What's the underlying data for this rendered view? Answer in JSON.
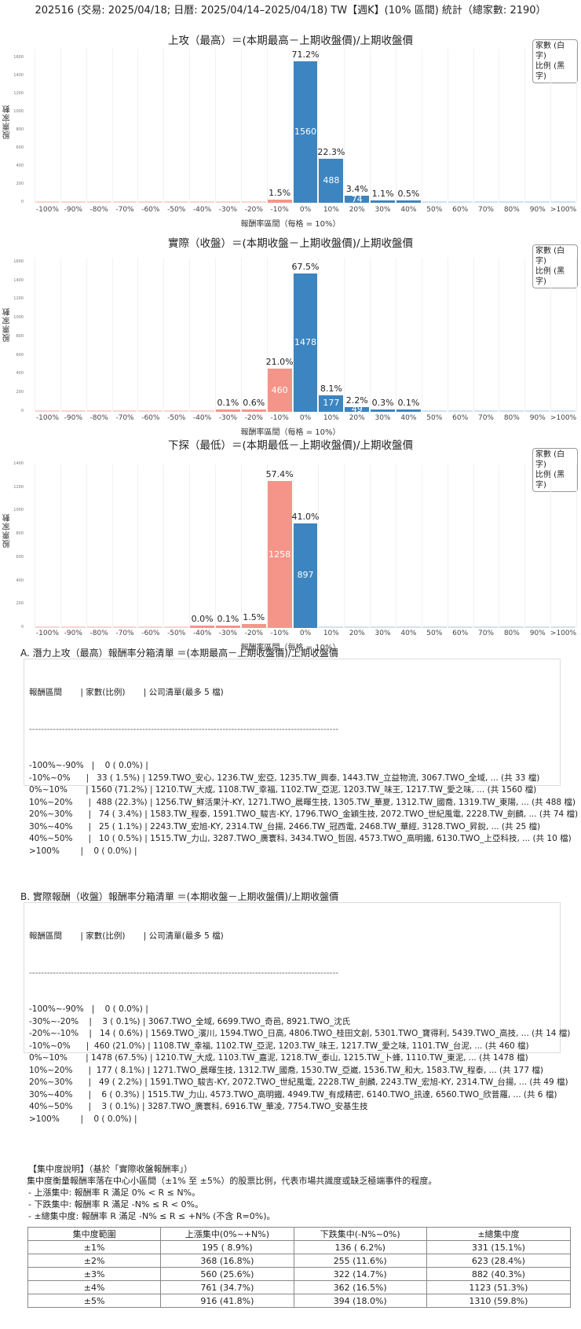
{
  "page_title": "202516 (交易: 2025/04/18; 日曆: 2025/04/14–2025/04/18) TW【週K】(10% 區間) 統計（總家數: 2190）",
  "legend": {
    "line1": "家數 (白字)",
    "line2": "比例 (黑字)"
  },
  "ylabel": "股票家數",
  "xlabel": "報酬率區間（每格 = 10%）",
  "colors": {
    "positive": "#3d85c0",
    "negative": "#f5958a"
  },
  "chart_data": [
    {
      "type": "bar",
      "title": "上攻（最高）＝(本期最高－上期收盤價)/上期收盤價",
      "xlabel": "報酬率區間（每格 = 10%）",
      "ylabel": "股票家數",
      "categories": [
        "-100%",
        "-90%",
        "-80%",
        "-70%",
        "-60%",
        "-50%",
        "-40%",
        "-30%",
        "-20%",
        "-10%",
        "0%",
        "10%",
        "20%",
        "30%",
        "40%",
        "50%",
        "60%",
        "70%",
        "80%",
        "90%",
        ">100%"
      ],
      "values": [
        0,
        0,
        0,
        0,
        0,
        0,
        0,
        0,
        0,
        33,
        1560,
        488,
        74,
        25,
        10,
        0,
        0,
        0,
        0,
        0,
        0
      ],
      "pct_labels": [
        "",
        "",
        "",
        "",
        "",
        "",
        "",
        "",
        "",
        "1.5%",
        "71.2%",
        "22.3%",
        "3.4%",
        "1.1%",
        "0.5%",
        "",
        "",
        "",
        "",
        "",
        ""
      ],
      "yticks": [
        0,
        200,
        400,
        600,
        800,
        1000,
        1200,
        1400,
        1600
      ],
      "ylim": [
        0,
        1700
      ],
      "legend": "家數 (白字) / 比例 (黑字)"
    },
    {
      "type": "bar",
      "title": "實際（收盤）＝(本期收盤－上期收盤價)/上期收盤價",
      "xlabel": "報酬率區間（每格 = 10%）",
      "ylabel": "股票家數",
      "categories": [
        "-100%",
        "-90%",
        "-80%",
        "-70%",
        "-60%",
        "-50%",
        "-40%",
        "-30%",
        "-20%",
        "-10%",
        "0%",
        "10%",
        "20%",
        "30%",
        "40%",
        "50%",
        "60%",
        "70%",
        "80%",
        "90%",
        ">100%"
      ],
      "values": [
        0,
        0,
        0,
        0,
        0,
        0,
        0,
        3,
        14,
        460,
        1478,
        177,
        49,
        6,
        3,
        0,
        0,
        0,
        0,
        0,
        0
      ],
      "pct_labels": [
        "",
        "",
        "",
        "",
        "",
        "",
        "",
        "0.1%",
        "0.6%",
        "21.0%",
        "67.5%",
        "8.1%",
        "2.2%",
        "0.3%",
        "0.1%",
        "",
        "",
        "",
        "",
        "",
        ""
      ],
      "yticks": [
        0,
        200,
        400,
        600,
        800,
        1000,
        1200,
        1400,
        1600
      ],
      "ylim": [
        0,
        1650
      ],
      "legend": "家數 (白字) / 比例 (黑字)"
    },
    {
      "type": "bar",
      "title": "下探（最低）＝(本期最低－上期收盤價)/上期收盤價",
      "xlabel": "報酬率區間（每格 = 10%）",
      "ylabel": "股票家數",
      "categories": [
        "-100%",
        "-90%",
        "-80%",
        "-70%",
        "-60%",
        "-50%",
        "-40%",
        "-30%",
        "-20%",
        "-10%",
        "0%",
        "10%",
        "20%",
        "30%",
        "40%",
        "50%",
        "60%",
        "70%",
        "80%",
        "90%",
        ">100%"
      ],
      "values": [
        0,
        0,
        0,
        0,
        0,
        0,
        1,
        2,
        32,
        1258,
        897,
        0,
        0,
        0,
        0,
        0,
        0,
        0,
        0,
        0,
        0
      ],
      "pct_labels": [
        "",
        "",
        "",
        "",
        "",
        "",
        "0.0%",
        "0.1%",
        "1.5%",
        "57.4%",
        "41.0%",
        "",
        "",
        "",
        "",
        "",
        "",
        "",
        "",
        "",
        ""
      ],
      "yticks": [
        0,
        200,
        400,
        600,
        800,
        1000,
        1200,
        1400
      ],
      "ylim": [
        0,
        1400
      ],
      "legend": "家數 (白字) / 比例 (黑字)"
    }
  ],
  "section_a": {
    "title": "A. 潛力上攻（最高）報酬率分箱清單 ＝(本期最高－上期收盤價)/上期收盤價",
    "header": "報酬區間       | 家數(比例)       | 公司清單(最多 5 檔)",
    "divider": "--------------------------------------------------------------------------------------------------------",
    "rows": [
      "-100%~-90%   |    0 ( 0.0%) |",
      "-10%~0%      |   33 ( 1.5%) | 1259.TWO_安心, 1236.TW_宏亞, 1235.TW_興泰, 1443.TW_立益物流, 3067.TWO_全域, ... (共 33 檔)",
      "0%~10%       | 1560 (71.2%) | 1210.TW_大成, 1108.TW_幸福, 1102.TW_亞泥, 1203.TW_味王, 1217.TW_愛之味, ... (共 1560 檔)",
      "10%~20%      |  488 (22.3%) | 1256.TW_鮮活果汁-KY, 1271.TWO_晨暉生技, 1305.TW_華夏, 1312.TW_國喬, 1319.TW_東陽, ... (共 488 檔)",
      "20%~30%      |   74 ( 3.4%) | 1583.TW_程泰, 1591.TWO_駿吉-KY, 1796.TWO_金穎生技, 2072.TWO_世紀風電, 2228.TW_劍麟, ... (共 74 檔)",
      "30%~40%      |   25 ( 1.1%) | 2243.TW_宏旭-KY, 2314.TW_台揚, 2466.TW_冠西電, 2468.TW_華經, 3128.TWO_昇銳, ... (共 25 檔)",
      "40%~50%      |   10 ( 0.5%) | 1515.TW_力山, 3287.TWO_廣寰科, 3434.TWO_哲固, 4573.TWO_高明鐵, 6130.TWO_上亞科技, ... (共 10 檔)",
      ">100%        |    0 ( 0.0%) |"
    ]
  },
  "section_b": {
    "title": "B. 實際報酬（收盤）報酬率分箱清單 ＝(本期收盤－上期收盤價)/上期收盤價",
    "header": "報酬區間       | 家數(比例)       | 公司清單(最多 5 檔)",
    "divider": "--------------------------------------------------------------------------------------------------------",
    "rows": [
      "-100%~-90%   |    0 ( 0.0%) |",
      "-30%~-20%    |    3 ( 0.1%) | 3067.TWO_全域, 6699.TWO_奇邑, 8921.TWO_沈氏",
      "-20%~-10%    |   14 ( 0.6%) | 1569.TWO_濱川, 1594.TWO_日高, 4806.TWO_桂田文創, 5301.TWO_寶得利, 5439.TWO_高技, ... (共 14 檔)",
      "-10%~0%      |  460 (21.0%) | 1108.TW_幸福, 1102.TW_亞泥, 1203.TW_味王, 1217.TW_愛之味, 1101.TW_台泥, ... (共 460 檔)",
      "0%~10%       | 1478 (67.5%) | 1210.TW_大成, 1103.TW_嘉泥, 1218.TW_泰山, 1215.TW_卜蜂, 1110.TW_東泥, ... (共 1478 檔)",
      "10%~20%      |  177 ( 8.1%) | 1271.TWO_晨暉生技, 1312.TW_國喬, 1530.TW_亞崴, 1536.TW_和大, 1583.TW_程泰, ... (共 177 檔)",
      "20%~30%      |   49 ( 2.2%) | 1591.TWO_駿吉-KY, 2072.TWO_世紀風電, 2228.TW_劍麟, 2243.TW_宏旭-KY, 2314.TW_台揚, ... (共 49 檔)",
      "30%~40%      |    6 ( 0.3%) | 1515.TW_力山, 4573.TWO_高明鐵, 4949.TW_有成精密, 6140.TWO_訊達, 6560.TWO_欣普羅, ... (共 6 檔)",
      "40%~50%      |    3 ( 0.1%) | 3287.TWO_廣寰科, 6916.TW_華凌, 7754.TWO_安基生技",
      ">100%        |    0 ( 0.0%) |"
    ]
  },
  "concentration": {
    "title": "【集中度說明】（基於「實際收盤報酬率」）",
    "desc": "集中度衡量報酬率落在中心小區間（±1% 至 ±5%）的股票比例，代表市場共識度或缺乏極端事件的程度。",
    "bullets": [
      "- 上漲集中: 報酬率 R 滿足 0% < R ≤ N%。",
      "- 下跌集中: 報酬率 R 滿足 -N% ≤ R < 0%。",
      "- ±總集中度: 報酬率 R 滿足 -N% ≤ R ≤ +N% (不含 R=0%)。"
    ],
    "table": {
      "headers": [
        "集中度範圍",
        "上漲集中(0%~+N%)",
        "下跌集中(-N%~0%)",
        "±總集中度"
      ],
      "rows": [
        [
          "±1%",
          "195 ( 8.9%)",
          "136 ( 6.2%)",
          "331 (15.1%)"
        ],
        [
          "±2%",
          "368 (16.8%)",
          "255 (11.6%)",
          "623 (28.4%)"
        ],
        [
          "±3%",
          "560 (25.6%)",
          "322 (14.7%)",
          "882 (40.3%)"
        ],
        [
          "±4%",
          "761 (34.7%)",
          "362 (16.5%)",
          "1123 (51.3%)"
        ],
        [
          "±5%",
          "916 (41.8%)",
          "394 (18.0%)",
          "1310 (59.8%)"
        ]
      ]
    }
  }
}
